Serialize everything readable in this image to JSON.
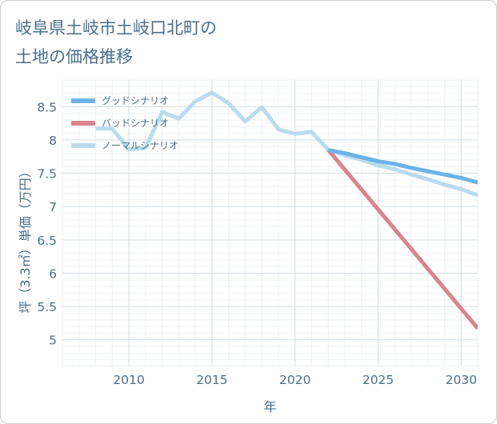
{
  "chart_data": {
    "type": "line",
    "title": "岐阜県土岐市土岐口北町の\n土地の価格推移",
    "xlabel": "年",
    "ylabel": "坪（3.3㎡）単価（万円）",
    "xlim": [
      2006,
      2031
    ],
    "ylim": [
      4.6,
      8.9
    ],
    "x_ticks": [
      2010,
      2015,
      2020,
      2025,
      2030
    ],
    "y_ticks": [
      5,
      5.5,
      6,
      6.5,
      7,
      7.5,
      8,
      8.5
    ],
    "grid": true,
    "legend_position": "top-left",
    "series": [
      {
        "name": "グッドシナリオ",
        "color": "#6cb4e8",
        "x": [
          2022,
          2023,
          2024,
          2025,
          2026,
          2027,
          2028,
          2029,
          2030,
          2031
        ],
        "y": [
          7.85,
          7.8,
          7.74,
          7.68,
          7.64,
          7.58,
          7.53,
          7.48,
          7.43,
          7.36
        ]
      },
      {
        "name": "バッドシナリオ",
        "color": "#d9848e",
        "x": [
          2022,
          2031
        ],
        "y": [
          7.85,
          5.17
        ]
      },
      {
        "name": "ノーマルシナリオ",
        "color": "#b8dced",
        "x": [
          2008,
          2009,
          2010,
          2011,
          2012,
          2013,
          2014,
          2015,
          2016,
          2017,
          2018,
          2019,
          2020,
          2021,
          2022,
          2023,
          2024,
          2025,
          2026,
          2027,
          2028,
          2029,
          2030,
          2031
        ],
        "y": [
          8.17,
          8.17,
          7.86,
          7.88,
          8.42,
          8.32,
          8.58,
          8.71,
          8.55,
          8.28,
          8.49,
          8.16,
          8.09,
          8.12,
          7.85,
          7.77,
          7.7,
          7.62,
          7.56,
          7.48,
          7.41,
          7.33,
          7.26,
          7.17
        ]
      }
    ]
  }
}
